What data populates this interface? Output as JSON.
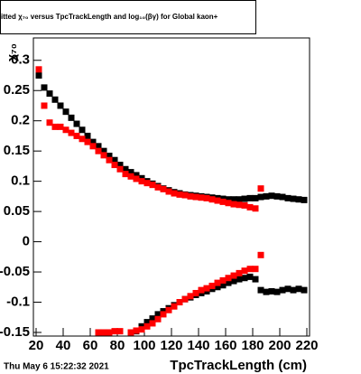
{
  "chart_data": {
    "type": "scatter",
    "title": "itted  χ₇₀  versus TpcTrackLength and log₁₀(βγ) for Global kaon+",
    "y_label": "χ₇₀",
    "x_label": "TpcTrackLength (cm)",
    "footer": "Thu May  6 15:22:32 2021",
    "xlim": [
      18,
      222
    ],
    "ylim": [
      -0.156,
      0.337
    ],
    "xticks": [
      20,
      40,
      60,
      80,
      100,
      120,
      140,
      160,
      180,
      200,
      220
    ],
    "yticks": [
      -0.15,
      -0.1,
      -0.05,
      0,
      0.05,
      0.1,
      0.15,
      0.2,
      0.25,
      0.3
    ],
    "series": [
      {
        "color": "#000000",
        "x": [
          22,
          26,
          30,
          34,
          38,
          42,
          46,
          50,
          54,
          58,
          62,
          66,
          70,
          74,
          78,
          82,
          86,
          90,
          94,
          98,
          102,
          106,
          110,
          114,
          118,
          122,
          126,
          130,
          134,
          138,
          142,
          146,
          150,
          154,
          158,
          162,
          166,
          170,
          174,
          178,
          182,
          186,
          190,
          194,
          198,
          202,
          206,
          210,
          214,
          218
        ],
        "values": [
          0.275,
          0.255,
          0.245,
          0.235,
          0.225,
          0.215,
          0.205,
          0.195,
          0.185,
          0.175,
          0.165,
          0.158,
          0.15,
          0.142,
          0.135,
          0.127,
          0.12,
          0.115,
          0.11,
          0.105,
          0.1,
          0.096,
          0.092,
          0.088,
          0.085,
          0.082,
          0.08,
          0.078,
          0.077,
          0.076,
          0.075,
          0.074,
          0.073,
          0.072,
          0.071,
          0.07,
          0.07,
          0.07,
          0.071,
          0.072,
          0.072,
          0.074,
          0.075,
          0.076,
          0.075,
          0.074,
          0.072,
          0.071,
          0.07,
          0.069
        ]
      },
      {
        "color": "#ff0000",
        "x": [
          22,
          26,
          30,
          34,
          38,
          42,
          46,
          50,
          54,
          58,
          62,
          66,
          70,
          74,
          78,
          82,
          86,
          90,
          94,
          98,
          102,
          106,
          110,
          114,
          118,
          122,
          126,
          130,
          134,
          138,
          142,
          146,
          150,
          154,
          158,
          162,
          166,
          170,
          174,
          178,
          182,
          186
        ],
        "values": [
          0.285,
          0.225,
          0.197,
          0.19,
          0.19,
          0.185,
          0.18,
          0.175,
          0.17,
          0.165,
          0.158,
          0.15,
          0.143,
          0.135,
          0.127,
          0.12,
          0.112,
          0.108,
          0.104,
          0.1,
          0.097,
          0.094,
          0.09,
          0.087,
          0.083,
          0.08,
          0.078,
          0.077,
          0.075,
          0.074,
          0.073,
          0.072,
          0.07,
          0.068,
          0.066,
          0.064,
          0.062,
          0.061,
          0.06,
          0.057,
          0.055,
          0.088
        ]
      },
      {
        "color": "#000000",
        "x": [
          94,
          98,
          102,
          106,
          110,
          114,
          118,
          122,
          126,
          130,
          134,
          138,
          142,
          146,
          150,
          154,
          158,
          162,
          166,
          170,
          174,
          178,
          182,
          186,
          190,
          194,
          198,
          202,
          206,
          210,
          214,
          218
        ],
        "values": [
          -0.148,
          -0.14,
          -0.133,
          -0.127,
          -0.12,
          -0.115,
          -0.11,
          -0.105,
          -0.1,
          -0.095,
          -0.092,
          -0.088,
          -0.085,
          -0.082,
          -0.078,
          -0.075,
          -0.072,
          -0.068,
          -0.065,
          -0.062,
          -0.06,
          -0.058,
          -0.062,
          -0.08,
          -0.083,
          -0.082,
          -0.083,
          -0.08,
          -0.078,
          -0.08,
          -0.078,
          -0.08
        ]
      },
      {
        "color": "#ff0000",
        "x": [
          66,
          70,
          74,
          78,
          82,
          90,
          94,
          98,
          102,
          106,
          110,
          114,
          118,
          122,
          126,
          130,
          134,
          138,
          142,
          146,
          150,
          154,
          158,
          162,
          166,
          170,
          174,
          178,
          182,
          186
        ],
        "values": [
          -0.15,
          -0.15,
          -0.15,
          -0.148,
          -0.148,
          -0.15,
          -0.147,
          -0.145,
          -0.14,
          -0.135,
          -0.128,
          -0.12,
          -0.113,
          -0.107,
          -0.1,
          -0.095,
          -0.09,
          -0.085,
          -0.08,
          -0.077,
          -0.073,
          -0.068,
          -0.064,
          -0.06,
          -0.056,
          -0.052,
          -0.048,
          -0.045,
          -0.045,
          -0.022
        ]
      }
    ]
  }
}
